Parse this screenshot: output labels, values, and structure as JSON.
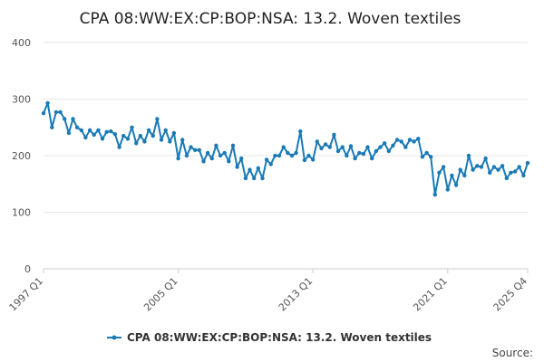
{
  "chart_data": {
    "type": "line",
    "title": "CPA 08:WW:EX:CP:BOP:NSA: 13.2. Woven textiles",
    "xlabel": "",
    "ylabel": "",
    "ylim": [
      0,
      400
    ],
    "yticks": [
      0,
      100,
      200,
      300,
      400
    ],
    "x_start": "1997 Q1",
    "x_end": "2025 Q4",
    "xtick_labels": [
      {
        "label": "1997 Q1",
        "index": 0
      },
      {
        "label": "2005 Q1",
        "index": 32
      },
      {
        "label": "2013 Q1",
        "index": 64
      },
      {
        "label": "2021 Q1",
        "index": 96
      },
      {
        "label": "2025 Q4",
        "index": 115
      }
    ],
    "legend_position": "bottom",
    "grid": true,
    "source_label": "Source:",
    "series": [
      {
        "name": "CPA 08:WW:EX:CP:BOP:NSA: 13.2. Woven textiles",
        "color": "#1a7ab5",
        "values": [
          275,
          293,
          250,
          277,
          277,
          265,
          240,
          265,
          250,
          245,
          232,
          245,
          237,
          245,
          230,
          242,
          243,
          238,
          215,
          235,
          230,
          250,
          222,
          235,
          225,
          245,
          235,
          265,
          228,
          245,
          225,
          240,
          195,
          228,
          200,
          215,
          210,
          210,
          190,
          205,
          195,
          218,
          200,
          205,
          190,
          218,
          180,
          195,
          160,
          175,
          160,
          178,
          160,
          193,
          185,
          200,
          200,
          215,
          205,
          200,
          205,
          243,
          192,
          200,
          193,
          225,
          213,
          220,
          215,
          237,
          208,
          215,
          200,
          217,
          195,
          205,
          203,
          215,
          195,
          208,
          215,
          222,
          208,
          218,
          228,
          225,
          215,
          228,
          225,
          230,
          198,
          205,
          198,
          131,
          170,
          180,
          140,
          165,
          148,
          175,
          165,
          200,
          175,
          182,
          180,
          195,
          170,
          180,
          175,
          182,
          160,
          170,
          172,
          180,
          165,
          187
        ]
      }
    ]
  }
}
